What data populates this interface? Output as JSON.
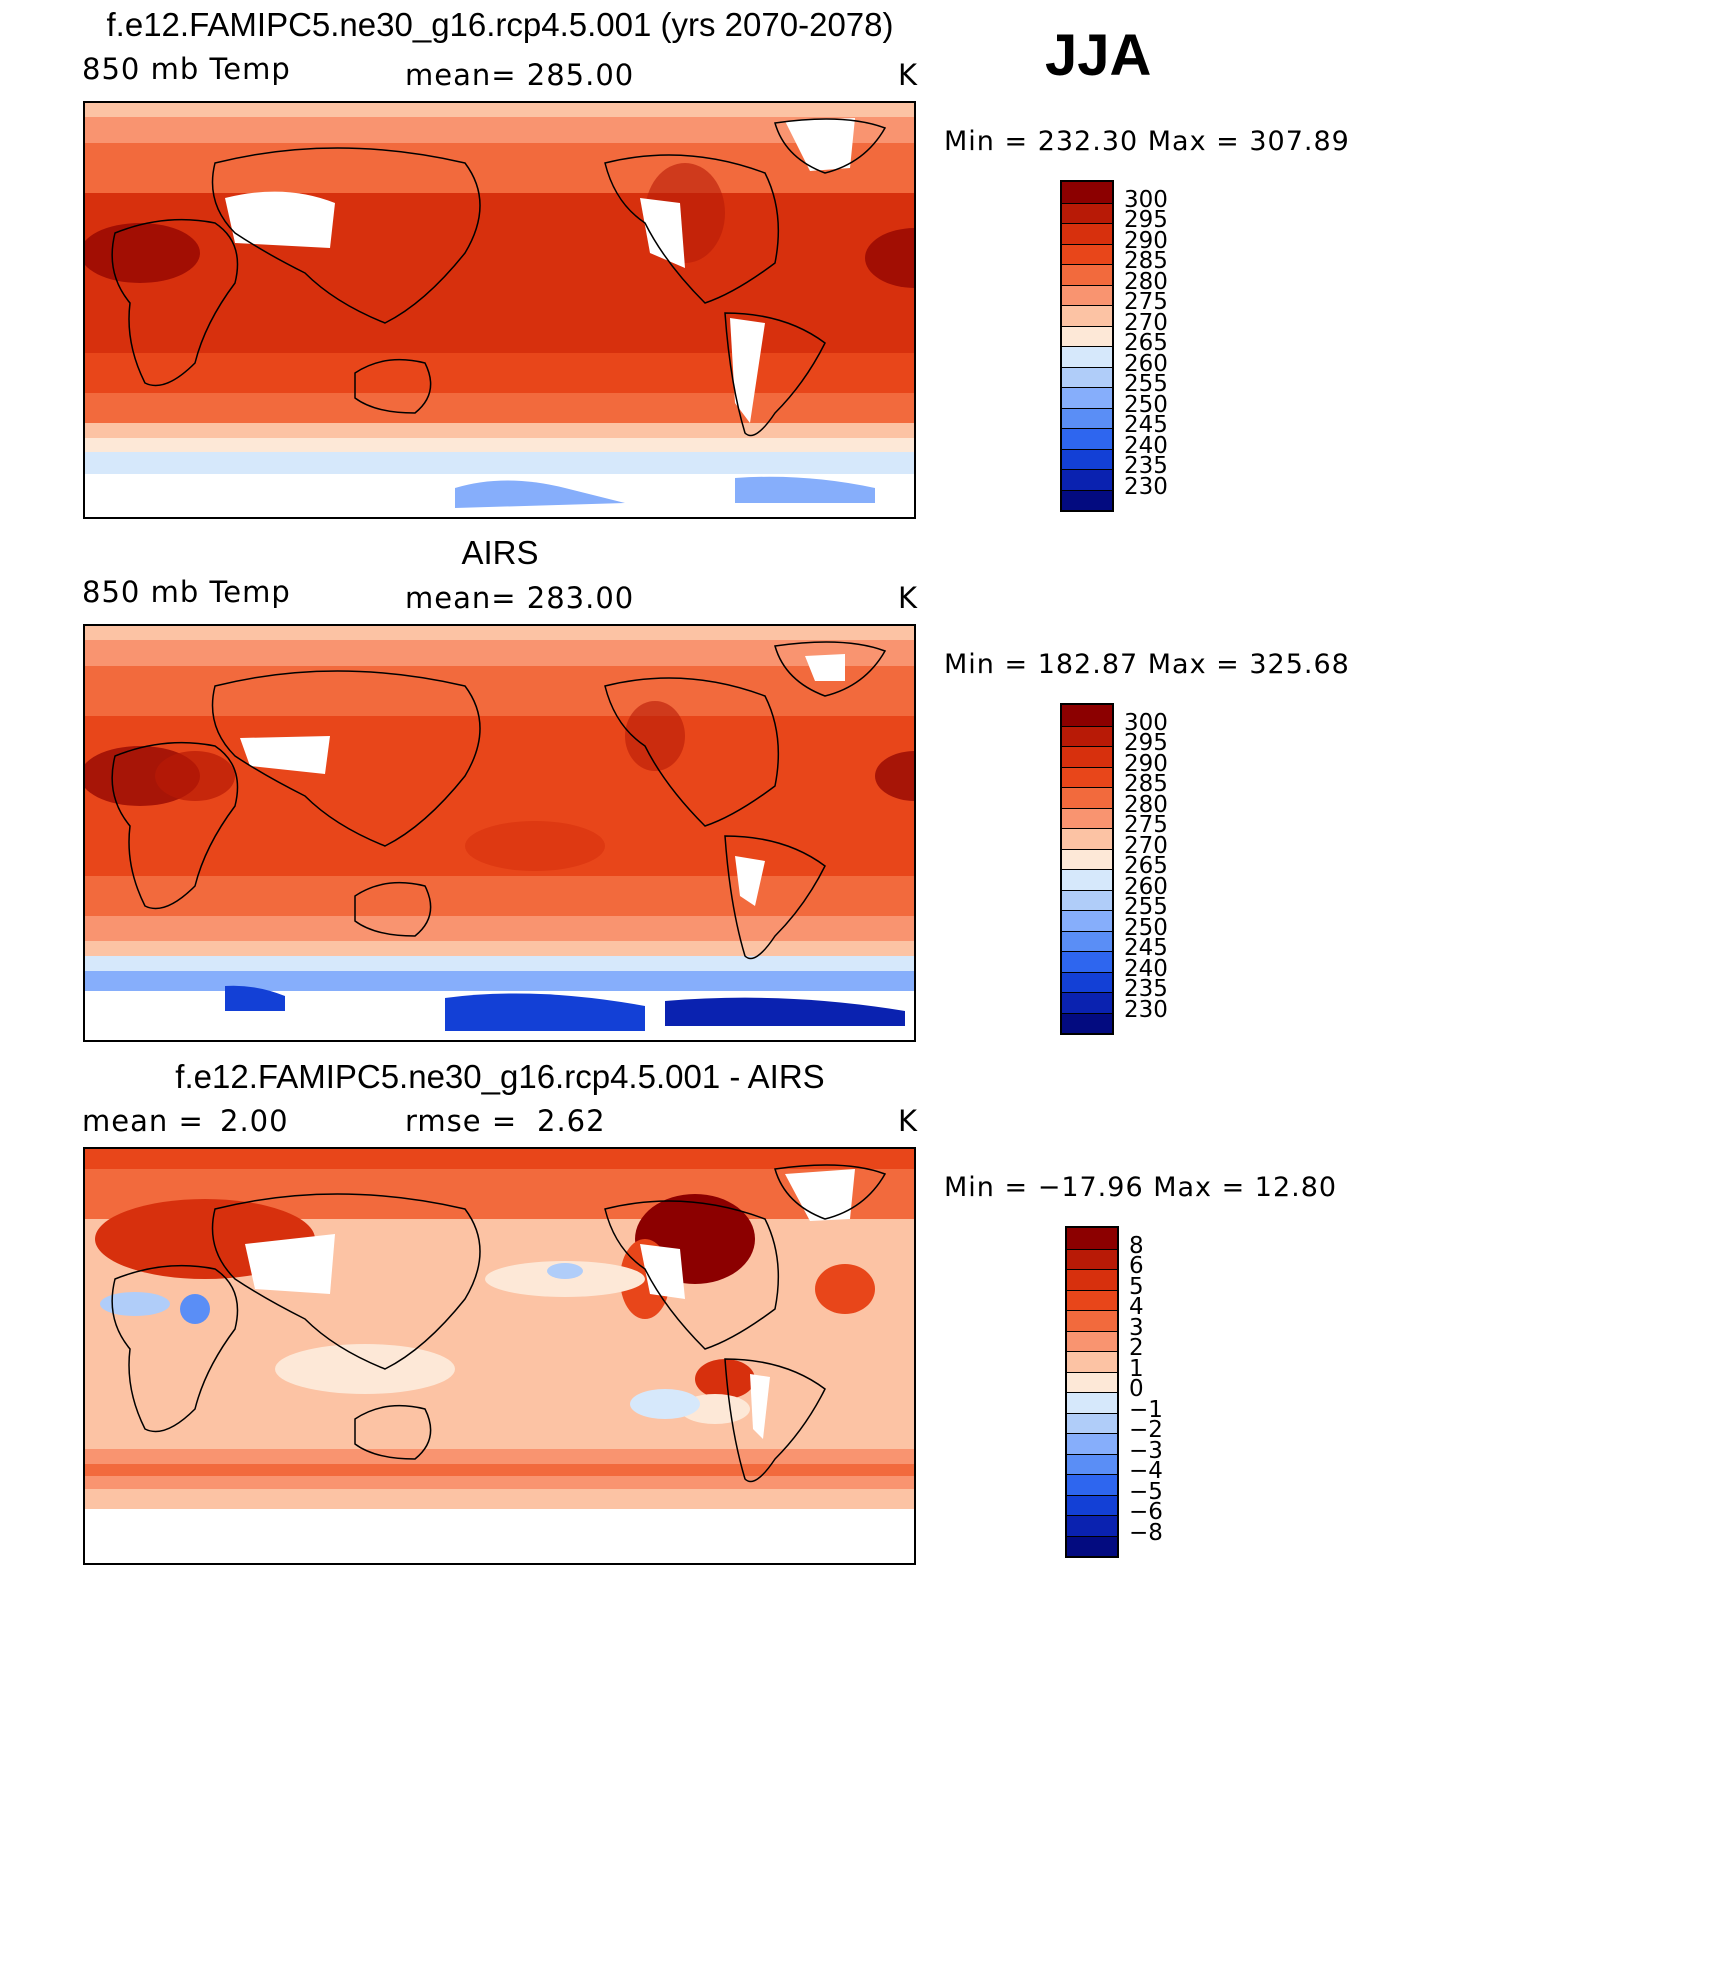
{
  "season": "JJA",
  "units": "K",
  "panels": [
    {
      "id": "model",
      "title": "f.e12.FAMIPC5.ne30_g16.rcp4.5.001 (yrs 2070-2078)",
      "left_label": "850 mb Temp",
      "center_label": "mean= 285.00",
      "units": "K",
      "minmax": "Min = 232.30 Max = 307.89",
      "colorbar": {
        "levels": [
          "300",
          "295",
          "290",
          "285",
          "280",
          "275",
          "270",
          "265",
          "260",
          "255",
          "250",
          "245",
          "240",
          "235",
          "230"
        ],
        "colors": [
          "#8c0000",
          "#b81a06",
          "#d7300d",
          "#e8461a",
          "#f26a3d",
          "#f99470",
          "#fcc3a4",
          "#fde8d7",
          "#d6e8fb",
          "#b0cdf9",
          "#86aefb",
          "#5a8ef6",
          "#2e66ef",
          "#1340d6",
          "#0a22b0",
          "#030b80"
        ]
      }
    },
    {
      "id": "obs",
      "title": "AIRS",
      "left_label": "850 mb Temp",
      "center_label": "mean= 283.00",
      "units": "K",
      "minmax": "Min = 182.87 Max = 325.68",
      "colorbar": {
        "levels": [
          "300",
          "295",
          "290",
          "285",
          "280",
          "275",
          "270",
          "265",
          "260",
          "255",
          "250",
          "245",
          "240",
          "235",
          "230"
        ],
        "colors": [
          "#8c0000",
          "#b81a06",
          "#d7300d",
          "#e8461a",
          "#f26a3d",
          "#f99470",
          "#fcc3a4",
          "#fde8d7",
          "#d6e8fb",
          "#b0cdf9",
          "#86aefb",
          "#5a8ef6",
          "#2e66ef",
          "#1340d6",
          "#0a22b0",
          "#030b80"
        ]
      }
    },
    {
      "id": "diff",
      "title": "f.e12.FAMIPC5.ne30_g16.rcp4.5.001 - AIRS",
      "left_label": "mean =",
      "left_value": "2.00",
      "center_label": "rmse =",
      "center_value": "2.62",
      "units": "K",
      "minmax": "Min = −17.96 Max = 12.80",
      "colorbar": {
        "levels": [
          "8",
          "6",
          "5",
          "4",
          "3",
          "2",
          "1",
          "0",
          "−1",
          "−2",
          "−3",
          "−4",
          "−5",
          "−6",
          "−8"
        ],
        "colors": [
          "#8c0000",
          "#b81a06",
          "#d7300d",
          "#e8461a",
          "#f26a3d",
          "#f99470",
          "#fcc3a4",
          "#fde8d7",
          "#d6e8fb",
          "#b0cdf9",
          "#86aefb",
          "#5a8ef6",
          "#2e66ef",
          "#1340d6",
          "#0a22b0",
          "#030b80"
        ]
      }
    }
  ]
}
